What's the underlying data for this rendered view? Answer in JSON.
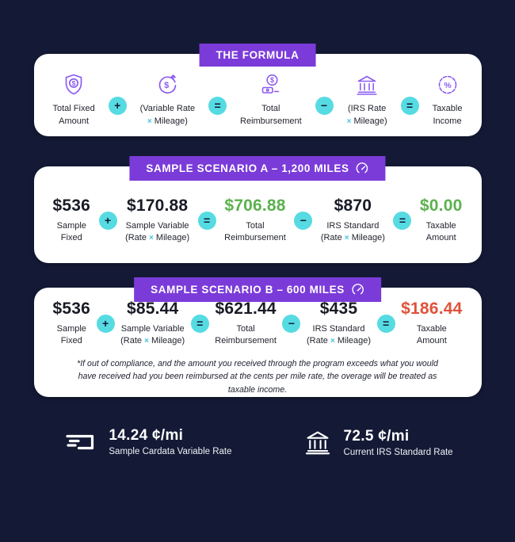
{
  "colors": {
    "background": "#141A35",
    "badge_purple": "#7B3BD9",
    "operator_teal": "#56DBE2",
    "positive_green": "#5CB14E",
    "negative_red": "#E0523A",
    "icon_purple": "#8C5CF0"
  },
  "formula": {
    "badge": "THE FORMULA",
    "operators": [
      "+",
      "=",
      "−",
      "="
    ],
    "items": [
      {
        "icon": "shield-dollar-icon",
        "lines": [
          "Total Fixed",
          "Amount"
        ]
      },
      {
        "icon": "dollar-cycle-icon",
        "lines": [
          "(Variable Rate",
          "× Mileage)"
        ]
      },
      {
        "icon": "cash-coin-icon",
        "lines": [
          "Total",
          "Reimbursement"
        ]
      },
      {
        "icon": "bank-icon",
        "lines": [
          "(IRS Rate",
          "× Mileage)"
        ]
      },
      {
        "icon": "percent-badge-icon",
        "lines": [
          "Taxable",
          "Income"
        ]
      }
    ]
  },
  "scenario_a": {
    "badge": "SAMPLE SCENARIO A – 1,200 MILES",
    "badge_icon": "speedometer-icon",
    "operators": [
      "+",
      "=",
      "−",
      "="
    ],
    "items": [
      {
        "amount": "$536",
        "color": "dark",
        "lines": [
          "Sample",
          "Fixed"
        ]
      },
      {
        "amount": "$170.88",
        "color": "dark",
        "lines": [
          "Sample Variable",
          "(Rate × Mileage)"
        ]
      },
      {
        "amount": "$706.88",
        "color": "green",
        "lines": [
          "Total",
          "Reimbursement"
        ]
      },
      {
        "amount": "$870",
        "color": "dark",
        "lines": [
          "IRS Standard",
          "(Rate × Mileage)"
        ]
      },
      {
        "amount": "$0.00",
        "color": "green",
        "lines": [
          "Taxable",
          "Amount"
        ]
      }
    ]
  },
  "scenario_b": {
    "badge": "SAMPLE SCENARIO B – 600 MILES",
    "badge_icon": "speedometer-icon",
    "operators": [
      "+",
      "=",
      "−",
      "="
    ],
    "items": [
      {
        "amount": "$536",
        "color": "dark",
        "lines": [
          "Sample",
          "Fixed"
        ]
      },
      {
        "amount": "$85.44",
        "color": "dark",
        "lines": [
          "Sample Variable",
          "(Rate × Mileage)"
        ]
      },
      {
        "amount": "$621.44",
        "color": "dark",
        "lines": [
          "Total",
          "Reimbursement"
        ]
      },
      {
        "amount": "$435",
        "color": "dark",
        "lines": [
          "IRS Standard",
          "(Rate × Mileage)"
        ]
      },
      {
        "amount": "$186.44",
        "color": "red",
        "lines": [
          "Taxable",
          "Amount"
        ]
      }
    ],
    "footnote": "*If out of compliance, and the amount you received through the program exceeds what you would have received had you been reimbursed at the cents per mile rate, the overage will be treated as taxable income."
  },
  "legend": {
    "variable": {
      "icon": "cardata-logo-icon",
      "rate": "14.24 ¢/mi",
      "label": "Sample Cardata Variable Rate"
    },
    "irs": {
      "icon": "bank-white-icon",
      "rate": "72.5 ¢/mi",
      "label": "Current IRS Standard Rate"
    }
  }
}
